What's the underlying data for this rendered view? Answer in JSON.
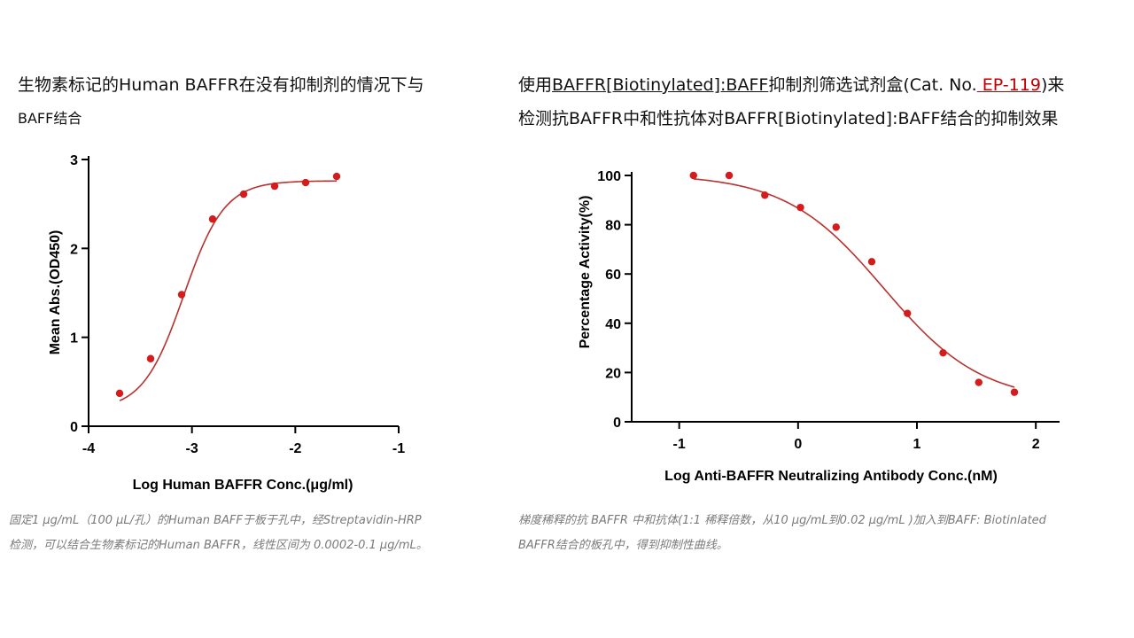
{
  "left": {
    "heading_line1": "生物素标记的Human BAFFR在没有抑制剂的情况下与",
    "heading_line2": "BAFF结合",
    "caption_line1": "固定1 μg/mL（100 μL/孔）的Human BAFF于板于孔中，经Streptavidin-HRP",
    "caption_line2": "检测，可以结合生物素标记的Human BAFFR，线性区间为 0.0002-0.1 μg/mL。"
  },
  "right": {
    "heading_pre": "使用",
    "heading_underlined": "BAFFR[Biotinylated]:BAFF",
    "heading_mid": "抑制剂筛选试剂盒(Cat. No.",
    "heading_link": " EP-119",
    "heading_post": ")来",
    "heading_line2": "检测抗BAFFR中和性抗体对BAFFR[Biotinylated]:BAFF结合的抑制效果",
    "caption_line1": "梯度稀释的抗 BAFFR 中和抗体(1:1 稀释倍数，从10 μg/mL到0.02 μg/mL )加入到BAFF: Biotinlated",
    "caption_line2": "BAFFR结合的板孔中，得到抑制性曲线。"
  },
  "chart_data": [
    {
      "type": "scatter",
      "fit": "sigmoidal",
      "xlabel": "Log Human BAFFR Conc.(μg/ml)",
      "ylabel": "Mean Abs.(OD450)",
      "xlim": [
        -4,
        -1
      ],
      "ylim": [
        0,
        3
      ],
      "xticks": [
        -4,
        -3,
        -2,
        -1
      ],
      "yticks": [
        0,
        1,
        2,
        3
      ],
      "x": [
        -3.7,
        -3.4,
        -3.1,
        -2.8,
        -2.5,
        -2.2,
        -1.9,
        -1.6
      ],
      "y": [
        0.37,
        0.76,
        1.48,
        2.33,
        2.61,
        2.7,
        2.74,
        2.81
      ],
      "fit_params": {
        "bottom": 0.18,
        "top": 2.76,
        "logEC50": -3.08,
        "hill": 2.2
      },
      "color": "#d41c1c",
      "curve_color": "#b8322e",
      "grid": false
    },
    {
      "type": "scatter",
      "fit": "sigmoidal",
      "xlabel": "Log Anti-BAFFR Neutralizing Antibody Conc.(nM)",
      "ylabel": "Percentage Activity(%)",
      "xlim": [
        -1.4,
        2.2
      ],
      "ylim": [
        0,
        100
      ],
      "xticks": [
        -1,
        0,
        1,
        2
      ],
      "yticks": [
        0,
        20,
        40,
        60,
        80,
        100
      ],
      "x": [
        -0.88,
        -0.58,
        -0.28,
        0.02,
        0.32,
        0.62,
        0.92,
        1.22,
        1.52,
        1.82
      ],
      "y": [
        100,
        100,
        92,
        87,
        79,
        65,
        44,
        28,
        16,
        12
      ],
      "fit_params": {
        "bottom": 8,
        "top": 100.5,
        "logEC50": 0.72,
        "hill": -1.05
      },
      "color": "#d41c1c",
      "curve_color": "#b8322e",
      "grid": false
    }
  ]
}
